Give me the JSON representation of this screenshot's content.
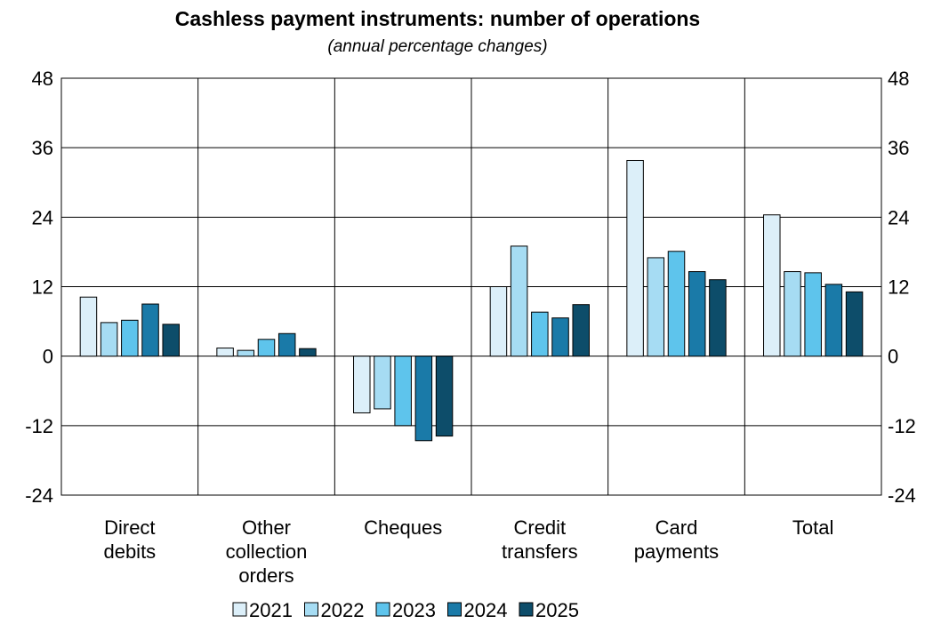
{
  "chart_data": {
    "type": "bar",
    "title": "Cashless payment instruments: number of operations",
    "subtitle": "(annual percentage changes)",
    "categories": [
      [
        "Direct",
        "debits"
      ],
      [
        "Other",
        "collection",
        "orders"
      ],
      [
        "Cheques"
      ],
      [
        "Credit",
        "transfers"
      ],
      [
        "Card",
        "payments"
      ],
      [
        "Total"
      ]
    ],
    "series": [
      {
        "name": "2021",
        "color": "#dceff9",
        "values": [
          10.2,
          1.4,
          -9.8,
          12.0,
          33.8,
          24.4
        ]
      },
      {
        "name": "2022",
        "color": "#a6dcf3",
        "values": [
          5.8,
          1.0,
          -9.1,
          19.0,
          17.0,
          14.6
        ]
      },
      {
        "name": "2023",
        "color": "#5ec4ec",
        "values": [
          6.2,
          2.9,
          -12.0,
          7.6,
          18.1,
          14.4
        ]
      },
      {
        "name": "2024",
        "color": "#1a7aa8",
        "values": [
          9.0,
          3.9,
          -14.6,
          6.6,
          14.6,
          12.4
        ]
      },
      {
        "name": "2025",
        "color": "#0d4d6a",
        "values": [
          5.5,
          1.3,
          -13.8,
          8.9,
          13.2,
          11.1
        ]
      }
    ],
    "ylim": [
      -24,
      48
    ],
    "yticks": [
      48,
      36,
      24,
      12,
      0,
      -12,
      -24
    ],
    "yaxis_both_sides": true,
    "grid": true,
    "legend_position": "bottom-center"
  }
}
